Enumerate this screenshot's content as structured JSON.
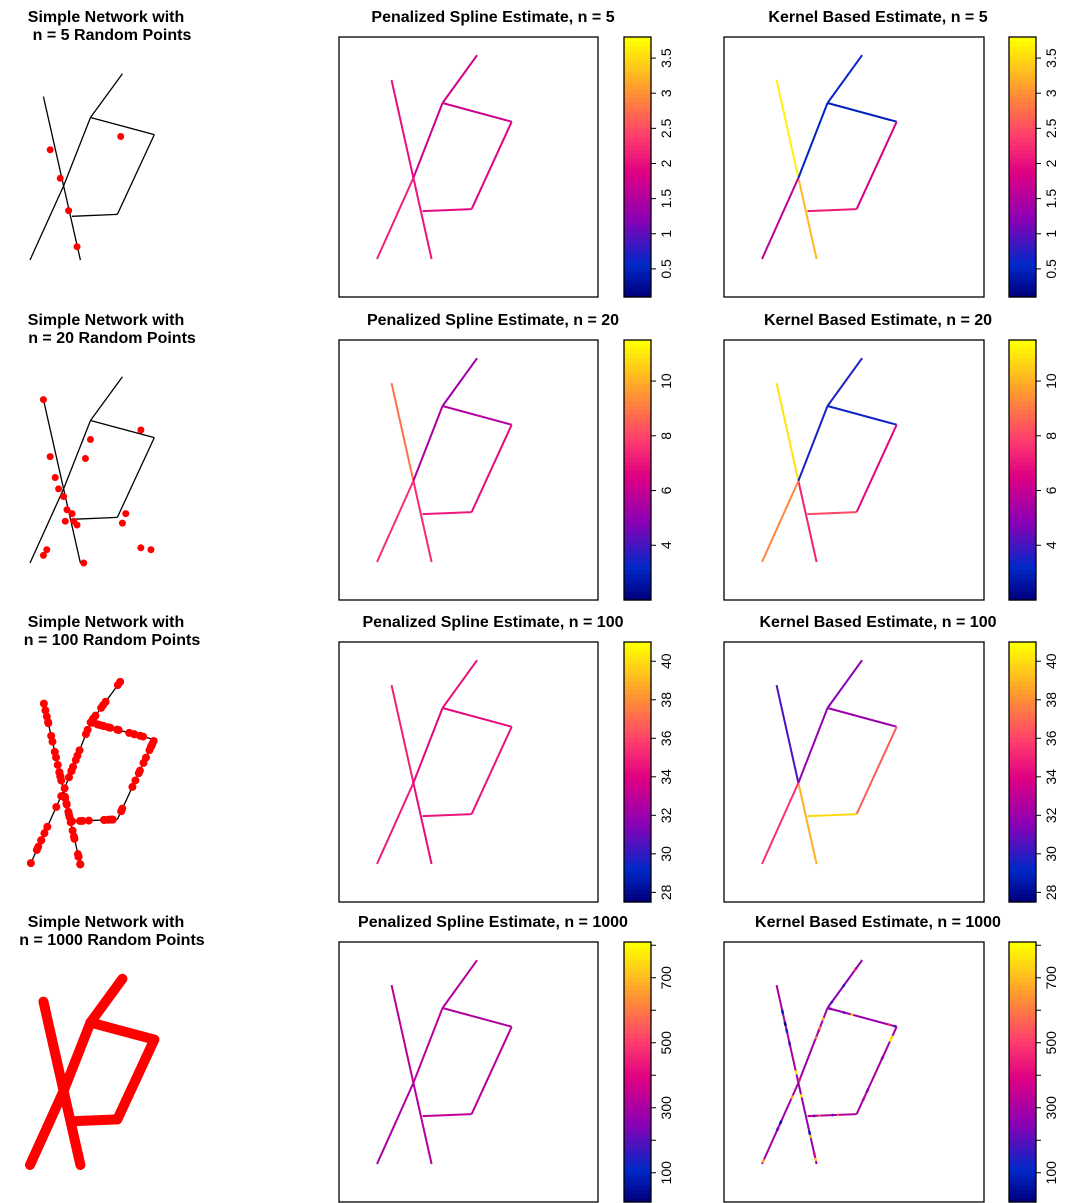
{
  "chart_data": [
    {
      "type": "network",
      "row": 0,
      "title_line1": "Simple Network with",
      "title_line2": "n = 5 Random Points",
      "point_color": "#FF0000",
      "points": [
        [
          0.12,
          0.42
        ],
        [
          0.18,
          0.57
        ],
        [
          0.23,
          0.74
        ],
        [
          0.54,
          0.35
        ],
        [
          0.28,
          0.93
        ]
      ],
      "point_density": 0
    },
    {
      "type": "network",
      "row": 1,
      "title_line1": "Simple Network with",
      "title_line2": "n = 20 Random Points",
      "point_color": "#FF0000",
      "points": [
        [
          0.66,
          0.3
        ],
        [
          0.36,
          0.35
        ],
        [
          0.33,
          0.45
        ],
        [
          0.08,
          0.14
        ],
        [
          0.12,
          0.44
        ],
        [
          0.15,
          0.55
        ],
        [
          0.17,
          0.61
        ],
        [
          0.2,
          0.65
        ],
        [
          0.22,
          0.72
        ],
        [
          0.25,
          0.74
        ],
        [
          0.26,
          0.78
        ],
        [
          0.28,
          0.8
        ],
        [
          0.21,
          0.78
        ],
        [
          0.57,
          0.74
        ],
        [
          0.55,
          0.79
        ],
        [
          0.66,
          0.92
        ],
        [
          0.72,
          0.93
        ],
        [
          0.1,
          0.93
        ],
        [
          0.08,
          0.96
        ],
        [
          0.32,
          1.0
        ]
      ],
      "point_density": 0
    },
    {
      "type": "network",
      "row": 2,
      "title_line1": "Simple Network with",
      "title_line2": "n = 100 Random Points",
      "point_color": "#FF0000",
      "points": [],
      "point_density": 100
    },
    {
      "type": "network",
      "row": 3,
      "title_line1": "Simple Network with",
      "title_line2": "n = 1000 Random Points",
      "point_color": "#FF0000",
      "points": [],
      "point_density": 1000
    },
    {
      "type": "heatmap",
      "row": 0,
      "title": "Penalized Spline Estimate, n = 5",
      "zlim": [
        0.1,
        3.8
      ],
      "colorbar_ticks": [
        0.5,
        1,
        1.5,
        2,
        2.5,
        3,
        3.5
      ],
      "colorbar_tick_labels": [
        "0.5",
        "1",
        "1.5",
        "2",
        "2.5",
        "3",
        "3.5"
      ],
      "edge_values": [
        2.0,
        2.05,
        2.15,
        1.7,
        1.75,
        1.7,
        1.9,
        1.95
      ],
      "variable_edges": []
    },
    {
      "type": "heatmap",
      "row": 0,
      "title": "Kernel Based Estimate, n = 5",
      "zlim": [
        0.1,
        3.8
      ],
      "colorbar_ticks": [
        0.5,
        1,
        1.5,
        2,
        2.5,
        3,
        3.5
      ],
      "colorbar_tick_labels": [
        "0.5",
        "1",
        "1.5",
        "2",
        "2.5",
        "3",
        "3.5"
      ],
      "edge_values": [
        3.7,
        3.3,
        1.6,
        0.5,
        0.6,
        0.45,
        1.8,
        2.1
      ],
      "variable_edges": []
    },
    {
      "type": "heatmap",
      "row": 1,
      "title": "Penalized Spline Estimate, n = 20",
      "zlim": [
        2,
        11.5
      ],
      "colorbar_ticks": [
        4,
        6,
        8,
        10
      ],
      "colorbar_tick_labels": [
        "4",
        "6",
        "8",
        "10"
      ],
      "edge_values": [
        8.9,
        7.5,
        7.6,
        5.5,
        5.2,
        5.6,
        6.8,
        7.1
      ],
      "variable_edges": []
    },
    {
      "type": "heatmap",
      "row": 1,
      "title": "Kernel Based Estimate, n = 20",
      "zlim": [
        2,
        11.5
      ],
      "colorbar_ticks": [
        4,
        6,
        8,
        10
      ],
      "colorbar_tick_labels": [
        "4",
        "6",
        "8",
        "10"
      ],
      "edge_values": [
        11.0,
        7.3,
        9.3,
        3.4,
        3.5,
        3.3,
        6.7,
        8.1
      ],
      "variable_edges": []
    },
    {
      "type": "heatmap",
      "row": 2,
      "title": "Penalized Spline Estimate, n = 100",
      "zlim": [
        27.5,
        41
      ],
      "colorbar_ticks": [
        28,
        30,
        32,
        34,
        36,
        38,
        40
      ],
      "colorbar_tick_labels": [
        "28",
        "30",
        "32",
        "34",
        "36",
        "38",
        "40"
      ],
      "edge_values": [
        35.0,
        34.4,
        34.8,
        34.2,
        34.5,
        34.3,
        34.6,
        34.6
      ],
      "variable_edges": []
    },
    {
      "type": "heatmap",
      "row": 2,
      "title": "Kernel Based Estimate, n = 100",
      "zlim": [
        27.5,
        41
      ],
      "colorbar_ticks": [
        28,
        30,
        32,
        34,
        36,
        38,
        40
      ],
      "colorbar_tick_labels": [
        "28",
        "30",
        "32",
        "34",
        "36",
        "38",
        "40"
      ],
      "edge_values": [
        30.5,
        39.0,
        35.5,
        31.8,
        31.5,
        32.0,
        36.8,
        40.0
      ],
      "variable_edges": []
    },
    {
      "type": "heatmap",
      "row": 3,
      "title": "Penalized Spline Estimate, n = 1000",
      "zlim": [
        10,
        810
      ],
      "colorbar_ticks": [
        100,
        200,
        300,
        400,
        500,
        600,
        700,
        800
      ],
      "colorbar_tick_labels": [
        "100",
        "",
        "300",
        "",
        "500",
        "",
        "700",
        ""
      ],
      "edge_values": [
        330,
        315,
        305,
        335,
        320,
        310,
        325,
        340
      ],
      "variable_edges": []
    },
    {
      "type": "heatmap",
      "row": 3,
      "title": "Kernel Based Estimate, n = 1000",
      "zlim": [
        10,
        810
      ],
      "colorbar_ticks": [
        100,
        200,
        300,
        400,
        500,
        600,
        700,
        800
      ],
      "colorbar_tick_labels": [
        "100",
        "",
        "300",
        "",
        "500",
        "",
        "700",
        ""
      ],
      "edge_values": [
        300,
        260,
        290,
        280,
        250,
        270,
        300,
        320
      ],
      "variable_edges": [
        0,
        1,
        2,
        3,
        4,
        5,
        6,
        7
      ]
    }
  ]
}
